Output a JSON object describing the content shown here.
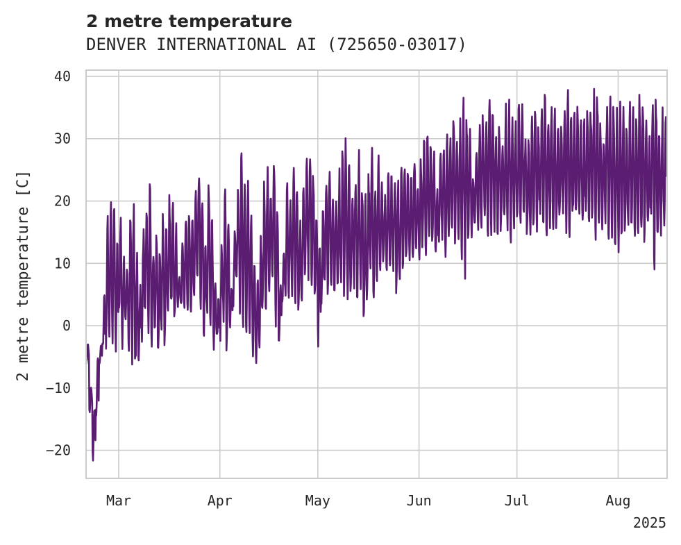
{
  "chart_data": {
    "type": "line",
    "title": "2 metre temperature",
    "subtitle": "DENVER INTERNATIONAL AI (725650-03017)",
    "ylabel": "2 metre temperature [C]",
    "xlabel": "",
    "year_label": "2025",
    "xlim": [
      "2025-02-19",
      "2025-08-16"
    ],
    "ylim": [
      -24.5,
      41
    ],
    "yticks": [
      40,
      30,
      20,
      10,
      0,
      -10,
      -20
    ],
    "xticks": [
      {
        "date": "2025-03-01",
        "label": "Mar"
      },
      {
        "date": "2025-04-01",
        "label": "Apr"
      },
      {
        "date": "2025-05-01",
        "label": "May"
      },
      {
        "date": "2025-06-01",
        "label": "Jun"
      },
      {
        "date": "2025-07-01",
        "label": "Jul"
      },
      {
        "date": "2025-08-01",
        "label": "Aug"
      }
    ],
    "grid": true,
    "colors": {
      "line": "#5a1d72",
      "grid": "#cccccc",
      "axes": "#cccccc",
      "text": "#262626"
    },
    "series": [
      {
        "x": [
          "2025-02-19",
          "2025-02-20",
          "2025-02-21",
          "2025-02-22",
          "2025-02-23",
          "2025-02-24",
          "2025-02-25",
          "2025-02-26",
          "2025-02-27",
          "2025-02-28",
          "2025-03-01",
          "2025-03-02",
          "2025-03-03",
          "2025-03-04",
          "2025-03-05",
          "2025-03-06",
          "2025-03-07",
          "2025-03-08",
          "2025-03-09",
          "2025-03-10",
          "2025-03-11",
          "2025-03-12",
          "2025-03-13",
          "2025-03-14",
          "2025-03-15",
          "2025-03-16",
          "2025-03-17",
          "2025-03-18",
          "2025-03-19",
          "2025-03-20",
          "2025-03-21",
          "2025-03-22",
          "2025-03-23",
          "2025-03-24",
          "2025-03-25",
          "2025-03-26",
          "2025-03-27",
          "2025-03-28",
          "2025-03-29",
          "2025-03-30",
          "2025-03-31",
          "2025-04-01",
          "2025-04-02",
          "2025-04-03",
          "2025-04-04",
          "2025-04-05",
          "2025-04-06",
          "2025-04-07",
          "2025-04-08",
          "2025-04-09",
          "2025-04-10",
          "2025-04-11",
          "2025-04-12",
          "2025-04-13",
          "2025-04-14",
          "2025-04-15",
          "2025-04-16",
          "2025-04-17",
          "2025-04-18",
          "2025-04-19",
          "2025-04-20",
          "2025-04-21",
          "2025-04-22",
          "2025-04-23",
          "2025-04-24",
          "2025-04-25",
          "2025-04-26",
          "2025-04-27",
          "2025-04-28",
          "2025-04-29",
          "2025-04-30",
          "2025-05-01",
          "2025-05-02",
          "2025-05-03",
          "2025-05-04",
          "2025-05-05",
          "2025-05-06",
          "2025-05-07",
          "2025-05-08",
          "2025-05-09",
          "2025-05-10",
          "2025-05-11",
          "2025-05-12",
          "2025-05-13",
          "2025-05-14",
          "2025-05-15",
          "2025-05-16",
          "2025-05-17",
          "2025-05-18",
          "2025-05-19",
          "2025-05-20",
          "2025-05-21",
          "2025-05-22",
          "2025-05-23",
          "2025-05-24",
          "2025-05-25",
          "2025-05-26",
          "2025-05-27",
          "2025-05-28",
          "2025-05-29",
          "2025-05-30",
          "2025-05-31",
          "2025-06-01",
          "2025-06-02",
          "2025-06-03",
          "2025-06-04",
          "2025-06-05",
          "2025-06-06",
          "2025-06-07",
          "2025-06-08",
          "2025-06-09",
          "2025-06-10",
          "2025-06-11",
          "2025-06-12",
          "2025-06-13",
          "2025-06-14",
          "2025-06-15",
          "2025-06-16",
          "2025-06-17",
          "2025-06-18",
          "2025-06-19",
          "2025-06-20",
          "2025-06-21",
          "2025-06-22",
          "2025-06-23",
          "2025-06-24",
          "2025-06-25",
          "2025-06-26",
          "2025-06-27",
          "2025-06-28",
          "2025-06-29",
          "2025-06-30",
          "2025-07-01",
          "2025-07-02",
          "2025-07-03",
          "2025-07-04",
          "2025-07-05",
          "2025-07-06",
          "2025-07-07",
          "2025-07-08",
          "2025-07-09",
          "2025-07-10",
          "2025-07-11",
          "2025-07-12",
          "2025-07-13",
          "2025-07-14",
          "2025-07-15",
          "2025-07-16",
          "2025-07-17",
          "2025-07-18",
          "2025-07-19",
          "2025-07-20",
          "2025-07-21",
          "2025-07-22",
          "2025-07-23",
          "2025-07-24",
          "2025-07-25",
          "2025-07-26",
          "2025-07-27",
          "2025-07-28",
          "2025-07-29",
          "2025-07-30",
          "2025-07-31",
          "2025-08-01",
          "2025-08-02",
          "2025-08-03",
          "2025-08-04",
          "2025-08-05",
          "2025-08-06",
          "2025-08-07",
          "2025-08-08",
          "2025-08-09",
          "2025-08-10",
          "2025-08-11",
          "2025-08-12",
          "2025-08-13",
          "2025-08-14",
          "2025-08-15"
        ],
        "min": [
          -6,
          -14,
          -21,
          -15,
          -6,
          -4,
          -2,
          -1,
          -3,
          -4,
          1,
          -3,
          0,
          -2,
          -5,
          -7,
          -5,
          -1,
          1,
          -1,
          -3,
          -2,
          -6,
          -1,
          -3,
          0,
          2,
          0,
          3,
          2,
          4,
          3,
          1,
          5,
          6,
          4,
          -1,
          2,
          1,
          -3,
          -2,
          -1,
          0,
          -3,
          0,
          4,
          6,
          4,
          2,
          1,
          -1,
          -4,
          -5,
          -2,
          2,
          4,
          6,
          6,
          1,
          -2,
          3,
          5,
          4,
          6,
          4,
          3,
          5,
          7,
          8,
          6,
          4,
          -2,
          3,
          5,
          6,
          7,
          5,
          6,
          8,
          6,
          4,
          6,
          7,
          5,
          7,
          2,
          5,
          8,
          6,
          8,
          9,
          10,
          8,
          9,
          10,
          6,
          8,
          10,
          11,
          11,
          10,
          12,
          12,
          13,
          12,
          14,
          13,
          12,
          13,
          14,
          12,
          13,
          15,
          14,
          13,
          12,
          10,
          14,
          15,
          16,
          14,
          16,
          17,
          16,
          15,
          16,
          15,
          16,
          17,
          16,
          15,
          16,
          17,
          16,
          17,
          15,
          16,
          17,
          16,
          18,
          16,
          15,
          17,
          16,
          16,
          17,
          18,
          16,
          15,
          17,
          16,
          17,
          16,
          18,
          17,
          16,
          15,
          15,
          16,
          17,
          15,
          16,
          13,
          12,
          15,
          16,
          15,
          17,
          15,
          16,
          15,
          14,
          15,
          16,
          11,
          14,
          15,
          16,
          15,
          16,
          15,
          16
        ],
        "max": [
          -3,
          -10,
          -14,
          -6,
          -3,
          5,
          16,
          20,
          19,
          14,
          18,
          11,
          9,
          17,
          20,
          10,
          6,
          15,
          18,
          22,
          12,
          15,
          13,
          18,
          16,
          20,
          22,
          16,
          8,
          14,
          17,
          19,
          16,
          21,
          24,
          19,
          12,
          22,
          16,
          8,
          4,
          13,
          21,
          18,
          6,
          15,
          22,
          26,
          24,
          22,
          16,
          10,
          8,
          14,
          22,
          24,
          20,
          26,
          18,
          6,
          12,
          22,
          20,
          25,
          24,
          16,
          22,
          26,
          28,
          24,
          17,
          12,
          18,
          24,
          26,
          20,
          19,
          24,
          28,
          29,
          25,
          21,
          22,
          26,
          21,
          20,
          24,
          28,
          23,
          26,
          22,
          20,
          25,
          24,
          22,
          24,
          26,
          27,
          24,
          25,
          28,
          23,
          26,
          29,
          30,
          28,
          28,
          22,
          27,
          30,
          29,
          31,
          33,
          31,
          32,
          36,
          34,
          30,
          24,
          29,
          32,
          33,
          32,
          35,
          34,
          31,
          32,
          30,
          34,
          35,
          32,
          33,
          34,
          35,
          30,
          31,
          33,
          34,
          31,
          35,
          36,
          33,
          35,
          34,
          32,
          33,
          35,
          36,
          33,
          34,
          35,
          32,
          33,
          35,
          34,
          36,
          37,
          32,
          30,
          34,
          35,
          36,
          33,
          35,
          34,
          31,
          35,
          34,
          33,
          36,
          35,
          32,
          31,
          35,
          36,
          33,
          34,
          35,
          36,
          34
        ]
      }
    ]
  }
}
